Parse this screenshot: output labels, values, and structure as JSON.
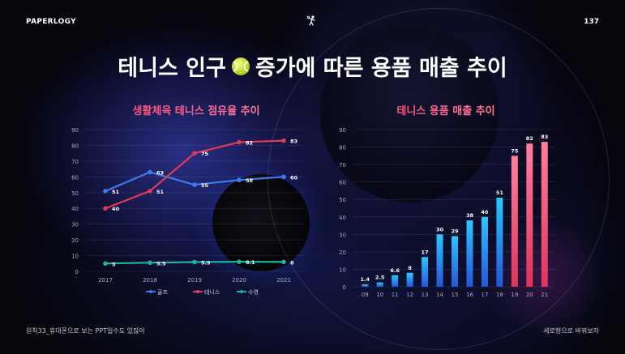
{
  "brand": "PAPERLOGY",
  "page_number": "137",
  "title_before": "테니스 인구",
  "title_after": "증가에 따른 용품 매출 추이",
  "footer_left": "원칙33_휴대폰으로 보는 PPT일수도 있잖아",
  "footer_right": "세로형으로 바꿔보자",
  "colors": {
    "golf": "#3d7bf0",
    "tennis": "#e03a56",
    "swim": "#22b39a",
    "chart_title_pink": "#ff5f87"
  },
  "chart_data": [
    {
      "type": "line",
      "title": "생활체육 테니스 점유율 추이",
      "x": [
        "2017",
        "2018",
        "2019",
        "2020",
        "2021"
      ],
      "ylim": [
        0,
        90
      ],
      "yticks": [
        0,
        10,
        20,
        30,
        40,
        50,
        60,
        70,
        80,
        90
      ],
      "grid": true,
      "legend_position": "bottom",
      "series": [
        {
          "name": "골프",
          "values": [
            51,
            63,
            55,
            58,
            60
          ]
        },
        {
          "name": "테니스",
          "values": [
            40,
            51,
            75,
            82,
            83
          ]
        },
        {
          "name": "수영",
          "values": [
            5,
            5.5,
            5.9,
            6.1,
            6
          ]
        }
      ]
    },
    {
      "type": "bar",
      "title": "테니스 용품 매출 추이",
      "categories": [
        "09",
        "10",
        "11",
        "12",
        "13",
        "14",
        "15",
        "16",
        "17",
        "18",
        "19",
        "20",
        "21"
      ],
      "values": [
        1.4,
        2.5,
        6.6,
        8,
        17,
        30,
        29,
        38,
        40,
        51,
        75,
        82,
        83
      ],
      "ylim": [
        0,
        90
      ],
      "yticks": [
        0,
        10,
        20,
        30,
        40,
        50,
        60,
        70,
        80,
        90
      ],
      "grid": true
    }
  ]
}
